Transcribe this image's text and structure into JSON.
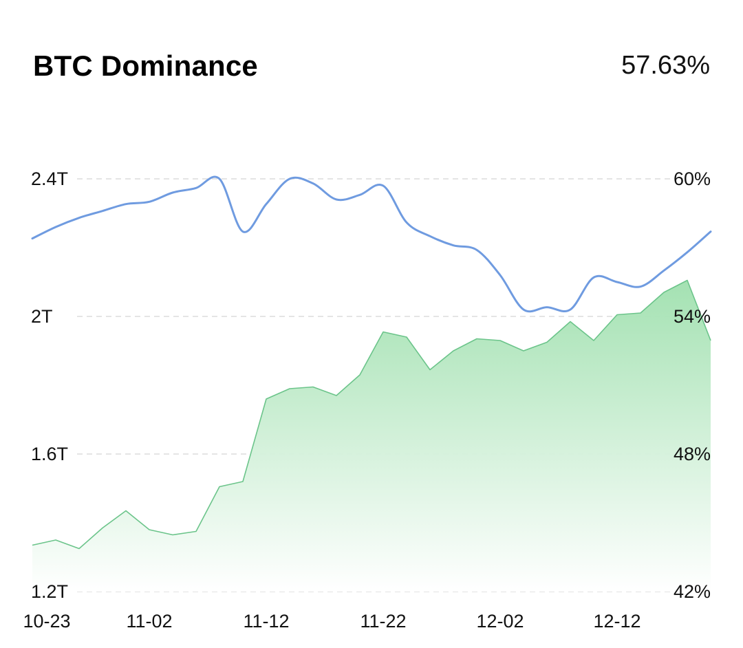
{
  "header": {
    "title": "BTC Dominance",
    "value": "57.63%"
  },
  "chart_data": {
    "type": "line",
    "title": "BTC Dominance",
    "grid": true,
    "x_ticks": [
      "10-23",
      "11-02",
      "11-12",
      "11-22",
      "12-02",
      "12-12"
    ],
    "y_left": {
      "ticks": [
        "2.4T",
        "2T",
        "1.6T",
        "1.2T"
      ],
      "tick_values": [
        2.4,
        2.0,
        1.6,
        1.2
      ],
      "range": [
        1.2,
        2.4
      ]
    },
    "y_right": {
      "ticks": [
        "60%",
        "54%",
        "48%",
        "42%"
      ],
      "tick_values": [
        60,
        54,
        48,
        42
      ],
      "range": [
        42,
        60
      ]
    },
    "series": [
      {
        "axis": "right",
        "type": "line",
        "color": "#6f9be0",
        "x": [
          "10-23",
          "10-25",
          "10-27",
          "10-29",
          "10-31",
          "11-02",
          "11-04",
          "11-06",
          "11-08",
          "11-10",
          "11-12",
          "11-14",
          "11-16",
          "11-18",
          "11-20",
          "11-22",
          "11-24",
          "11-26",
          "11-28",
          "11-30",
          "12-02",
          "12-04",
          "12-06",
          "12-08",
          "12-10",
          "12-12",
          "12-14",
          "12-16",
          "12-18",
          "12-20"
        ],
        "values": [
          57.4,
          57.9,
          58.3,
          58.6,
          58.9,
          59.0,
          59.4,
          59.6,
          60.0,
          57.7,
          58.9,
          60.0,
          59.8,
          59.1,
          59.3,
          59.7,
          58.1,
          57.5,
          57.1,
          56.9,
          55.8,
          54.3,
          54.4,
          54.3,
          55.7,
          55.5,
          55.3,
          56.0,
          56.8,
          57.7
        ]
      },
      {
        "axis": "left",
        "type": "area",
        "color": "#6bc48a",
        "x": [
          "10-23",
          "10-25",
          "10-27",
          "10-29",
          "10-31",
          "11-02",
          "11-04",
          "11-06",
          "11-08",
          "11-10",
          "11-12",
          "11-14",
          "11-16",
          "11-18",
          "11-20",
          "11-22",
          "11-24",
          "11-26",
          "11-28",
          "11-30",
          "12-02",
          "12-04",
          "12-06",
          "12-08",
          "12-10",
          "12-12",
          "12-14",
          "12-16",
          "12-18",
          "12-20"
        ],
        "values": [
          1.335,
          1.35,
          1.325,
          1.385,
          1.435,
          1.38,
          1.365,
          1.375,
          1.505,
          1.52,
          1.76,
          1.79,
          1.795,
          1.77,
          1.83,
          1.955,
          1.94,
          1.845,
          1.9,
          1.935,
          1.93,
          1.9,
          1.925,
          1.985,
          1.93,
          2.005,
          2.01,
          2.07,
          2.105,
          1.93
        ]
      }
    ]
  }
}
